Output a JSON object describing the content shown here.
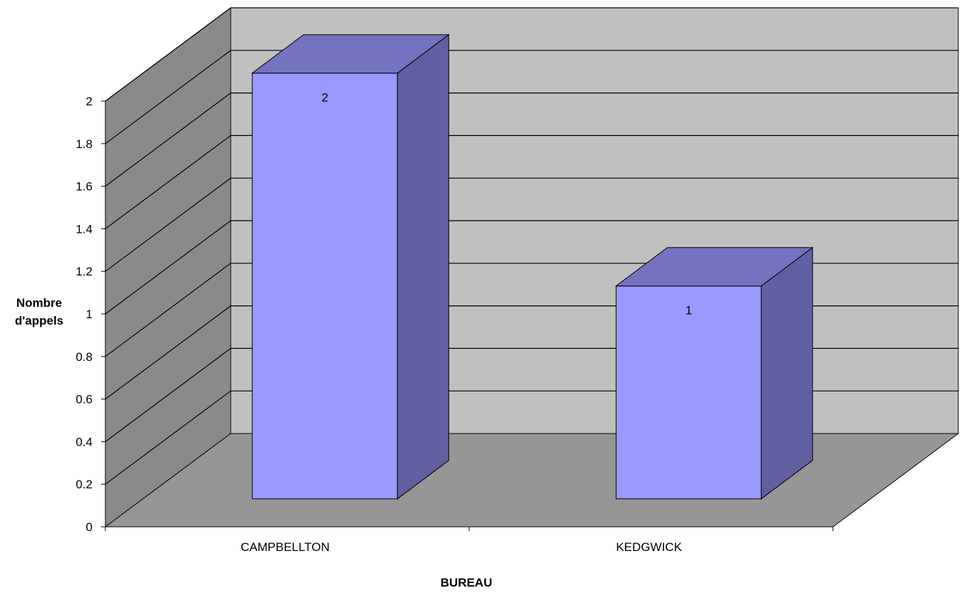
{
  "chart_data": {
    "type": "bar",
    "three_d": true,
    "categories": [
      "CAMPBELLTON",
      "KEDGWICK"
    ],
    "values": [
      2,
      1
    ],
    "data_labels": [
      "2",
      "1"
    ],
    "xlabel": "BUREAU",
    "ylabel_lines": [
      "Nombre",
      "d'appels"
    ],
    "ylim": [
      0,
      2
    ],
    "yticks": [
      "0",
      "0.2",
      "0.4",
      "0.6",
      "0.8",
      "1",
      "1.2",
      "1.4",
      "1.6",
      "1.8",
      "2"
    ],
    "grid": true,
    "legend": "none",
    "colors": {
      "bar_front": "#9999ff",
      "bar_top": "#7373c0",
      "bar_side": "#6060a0",
      "back_wall": "#c0c0c0",
      "side_wall": "#8a8a8a",
      "floor": "#969696"
    }
  }
}
